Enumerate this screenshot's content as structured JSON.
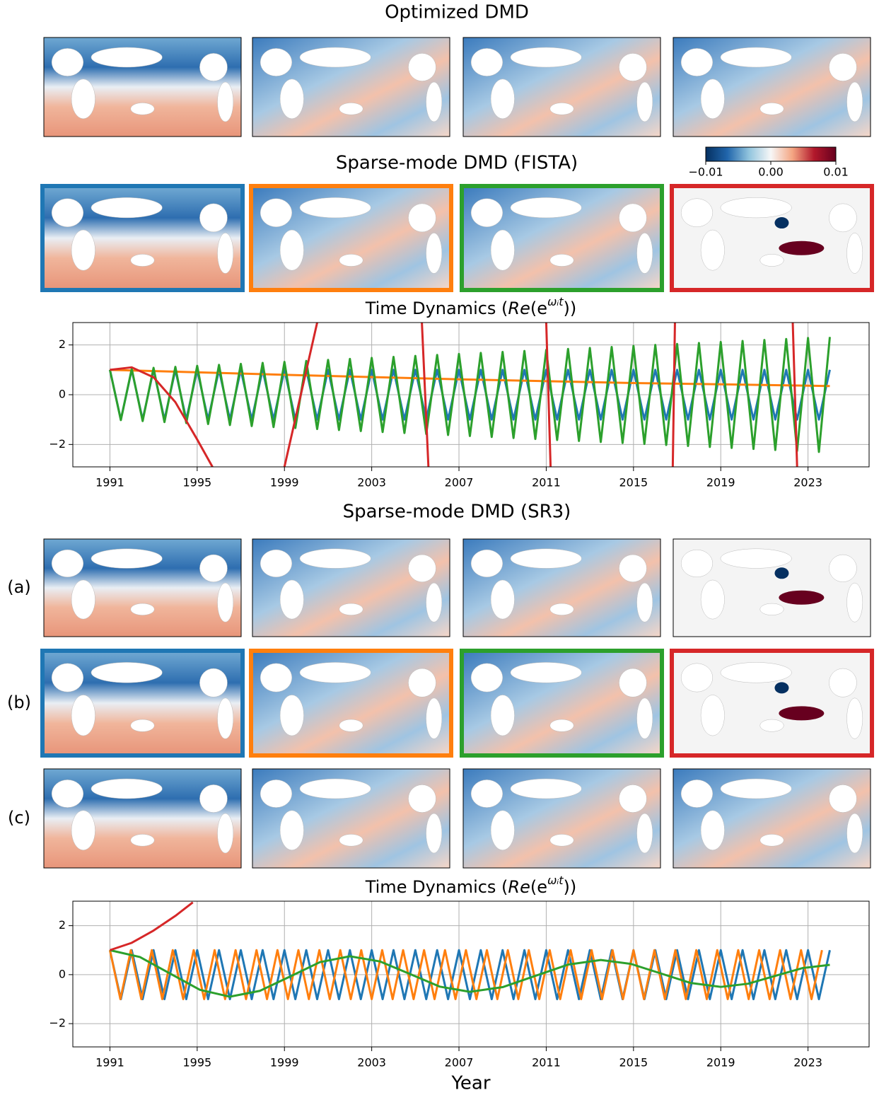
{
  "sections": [
    "Optimized DMD",
    "Sparse-mode DMD (FISTA)",
    "Sparse-mode DMD (SR3)"
  ],
  "row_labels": [
    "(a)",
    "(b)",
    "(c)"
  ],
  "colorbar": {
    "lim": [
      -0.01,
      0.01
    ],
    "ticks": [
      {
        "value": -0.01,
        "label": "−0.01"
      },
      {
        "value": 0,
        "label": "0.00"
      },
      {
        "value": 0.01,
        "label": "0.01"
      }
    ],
    "colors": [
      "#053061",
      "#2166ac",
      "#92c5de",
      "#f7f7f7",
      "#f4a582",
      "#b2182b",
      "#67001f"
    ]
  },
  "chart_data": [
    {
      "type": "line",
      "title": [
        "Time Dynamics (",
        "Re",
        "(e",
        "ωᵢt",
        "))"
      ],
      "x": [
        1991,
        1991.5,
        1992,
        1992.5,
        1993,
        1993.5,
        1994,
        1994.5,
        1995,
        1995.5,
        1996,
        1996.5,
        1997,
        1997.5,
        1998,
        1998.5,
        1999,
        1999.5,
        2000,
        2000.5,
        2001,
        2001.5,
        2002,
        2002.5,
        2003,
        2003.5,
        2004,
        2004.5,
        2005,
        2005.5,
        2006,
        2006.5,
        2007,
        2007.5,
        2008,
        2008.5,
        2009,
        2009.5,
        2010,
        2010.5,
        2011,
        2011.5,
        2012,
        2012.5,
        2013,
        2013.5,
        2014,
        2014.5,
        2015,
        2015.5,
        2016,
        2016.5,
        2017,
        2017.5,
        2018,
        2018.5,
        2019,
        2019.5,
        2020,
        2020.5,
        2021,
        2021.5,
        2022,
        2022.5,
        2023,
        2023.5,
        2024
      ],
      "xlim": [
        1989.3,
        2025.8
      ],
      "ylim": [
        -2.9,
        2.9
      ],
      "xticks": [
        1991,
        1995,
        1999,
        2003,
        2007,
        2011,
        2015,
        2019,
        2023
      ],
      "yticks": [
        {
          "value": -2,
          "label": "−2"
        },
        0,
        2
      ],
      "grid": true,
      "series": [
        {
          "color": "#1f77b4",
          "values": [
            1,
            -1,
            1,
            -1,
            1,
            -1,
            1,
            -1,
            1,
            -1,
            1,
            -1,
            1,
            -1,
            1,
            -1,
            1,
            -1,
            1,
            -1,
            1,
            -1,
            1,
            -1,
            1,
            -1,
            1,
            -1,
            1,
            -1,
            1,
            -1,
            1,
            -1,
            1,
            -1,
            1,
            -1,
            1,
            -1,
            1,
            -1,
            1,
            -1,
            1,
            -1,
            1,
            -1,
            1,
            -1,
            1,
            -1,
            1,
            -1,
            1,
            -1,
            1,
            -1,
            1,
            -1,
            1,
            -1,
            1,
            -1,
            1,
            -1,
            1
          ]
        },
        {
          "color": "#ff7f0e",
          "x": [
            1991,
            1999,
            2007,
            2015,
            2024
          ],
          "values": [
            1,
            0.8,
            0.62,
            0.47,
            0.35
          ]
        },
        {
          "color": "#2ca02c",
          "values": [
            1,
            -1.02,
            1.04,
            -1.06,
            1.08,
            -1.1,
            1.12,
            -1.14,
            1.16,
            -1.18,
            1.2,
            -1.22,
            1.24,
            -1.26,
            1.28,
            -1.3,
            1.32,
            -1.34,
            1.36,
            -1.38,
            1.4,
            -1.42,
            1.44,
            -1.46,
            1.48,
            -1.5,
            1.52,
            -1.54,
            1.56,
            -1.58,
            1.6,
            -1.62,
            1.64,
            -1.66,
            1.68,
            -1.7,
            1.72,
            -1.74,
            1.76,
            -1.78,
            1.8,
            -1.82,
            1.84,
            -1.86,
            1.88,
            -1.9,
            1.92,
            -1.94,
            1.96,
            -1.98,
            2,
            -2.02,
            2.04,
            -2.06,
            2.08,
            -2.1,
            2.12,
            -2.14,
            2.16,
            -2.18,
            2.2,
            -2.22,
            2.24,
            -2.26,
            2.28,
            -2.3,
            2.32
          ]
        },
        {
          "color": "#d62728",
          "x": [
            1991,
            1992,
            1993,
            1994,
            1995,
            1995.7,
            1997,
            1999,
            2000.5,
            2003,
            2005.3,
            2005.6,
            2008,
            2011,
            2011.2,
            2014,
            2016.8,
            2016.9,
            2020,
            2022.3,
            2022.5
          ],
          "values": [
            1,
            1.1,
            0.7,
            -0.3,
            -1.8,
            -2.9,
            null,
            -2.9,
            2.9,
            null,
            2.9,
            -2.9,
            null,
            2.9,
            -2.9,
            null,
            -2.9,
            2.9,
            null,
            2.9,
            -2.9
          ]
        }
      ]
    },
    {
      "type": "line",
      "title": [
        "Time Dynamics (",
        "Re",
        "(e",
        "ωᵢt",
        "))"
      ],
      "xlabel": "Year",
      "x": [
        1991,
        1991.5,
        1992,
        1992.5,
        1993,
        1993.5,
        1994,
        1994.5,
        1995,
        1995.5,
        1996,
        1996.5,
        1997,
        1997.5,
        1998,
        1998.5,
        1999,
        1999.5,
        2000,
        2000.5,
        2001,
        2001.5,
        2002,
        2002.5,
        2003,
        2003.5,
        2004,
        2004.5,
        2005,
        2005.5,
        2006,
        2006.5,
        2007,
        2007.5,
        2008,
        2008.5,
        2009,
        2009.5,
        2010,
        2010.5,
        2011,
        2011.5,
        2012,
        2012.5,
        2013,
        2013.5,
        2014,
        2014.5,
        2015,
        2015.5,
        2016,
        2016.5,
        2017,
        2017.5,
        2018,
        2018.5,
        2019,
        2019.5,
        2020,
        2020.5,
        2021,
        2021.5,
        2022,
        2022.5,
        2023,
        2023.5,
        2024
      ],
      "xlim": [
        1989.3,
        2025.8
      ],
      "ylim": [
        -2.95,
        3.0
      ],
      "xticks": [
        1991,
        1995,
        1999,
        2003,
        2007,
        2011,
        2015,
        2019,
        2023
      ],
      "yticks": [
        {
          "value": -2,
          "label": "−2"
        },
        0,
        2
      ],
      "grid": true,
      "series": [
        {
          "color": "#1f77b4",
          "values": [
            1,
            -1,
            1,
            -1,
            1,
            -1,
            1,
            -1,
            1,
            -1,
            1,
            -1,
            1,
            -1,
            1,
            -1,
            1,
            -1,
            1,
            -1,
            1,
            -1,
            1,
            -1,
            1,
            -1,
            1,
            -1,
            1,
            -1,
            1,
            -1,
            1,
            -1,
            1,
            -1,
            1,
            -1,
            1,
            -1,
            1,
            -1,
            1,
            -1,
            1,
            -1,
            1,
            -1,
            1,
            -1,
            1,
            -1,
            1,
            -1,
            1,
            -1,
            1,
            -1,
            1,
            -1,
            1,
            -1,
            1,
            -1,
            1,
            -1,
            1
          ]
        },
        {
          "color": "#ff7f0e",
          "x": [
            1991,
            1991.48,
            1991.96,
            1992.44,
            1992.92,
            1993.4,
            1993.88,
            1994.36,
            1994.84,
            1995.32,
            1995.8,
            1996.28,
            1996.76,
            1997.24,
            1997.72,
            1998.2,
            1998.68,
            1999.16,
            1999.64,
            2000.12,
            2000.6,
            2001.08,
            2001.56,
            2002.04,
            2002.52,
            2003,
            2003.48,
            2003.96,
            2004.44,
            2004.92,
            2005.4,
            2005.88,
            2006.36,
            2006.84,
            2007.32,
            2007.8,
            2008.28,
            2008.76,
            2009.24,
            2009.72,
            2010.2,
            2010.68,
            2011.16,
            2011.64,
            2012.12,
            2012.6,
            2013.08,
            2013.56,
            2014.04,
            2014.52,
            2015,
            2015.48,
            2015.96,
            2016.44,
            2016.92,
            2017.4,
            2017.88,
            2018.36,
            2018.84,
            2019.32,
            2019.8,
            2020.28,
            2020.76,
            2021.24,
            2021.72,
            2022.2,
            2022.68,
            2023.16,
            2023.64
          ],
          "values": [
            1,
            -1,
            1,
            -1,
            1,
            -1,
            1,
            -1,
            1,
            -1,
            1,
            -1,
            1,
            -1,
            1,
            -1,
            1,
            -1,
            1,
            -1,
            1,
            -1,
            1,
            -1,
            1,
            -1,
            1,
            -1,
            1,
            -1,
            1,
            -1,
            1,
            -1,
            1,
            -1,
            1,
            -1,
            1,
            -1,
            1,
            -1,
            1,
            -1,
            1,
            -1,
            1,
            -1,
            1,
            -1,
            1,
            -1,
            1,
            -1,
            1,
            -1,
            1,
            -1,
            1,
            -1,
            1,
            -1,
            1,
            -1,
            1,
            -1,
            1,
            -1,
            1
          ]
        },
        {
          "color": "#2ca02c",
          "x": [
            1991,
            1992.375,
            1993.75,
            1995.125,
            1996.5,
            1997.875,
            1999.25,
            2000.625,
            2002,
            2003.375,
            2004.75,
            2006.125,
            2007.5,
            2009,
            2010.5,
            2012,
            2013.5,
            2014.875,
            2016.25,
            2017.625,
            2019,
            2020.25,
            2021.5,
            2022.75,
            2024
          ],
          "values": [
            1,
            0.72,
            0.05,
            -0.62,
            -0.9,
            -0.66,
            -0.08,
            0.51,
            0.75,
            0.54,
            0.03,
            -0.49,
            -0.7,
            -0.51,
            -0.05,
            0.41,
            0.6,
            0.44,
            0.05,
            -0.34,
            -0.5,
            -0.37,
            -0.05,
            0.27,
            0.4
          ]
        },
        {
          "color": "#d62728",
          "x": [
            1991,
            1992,
            1993,
            1994,
            1994.8
          ],
          "values": [
            1,
            1.3,
            1.8,
            2.4,
            2.95
          ]
        }
      ]
    }
  ]
}
